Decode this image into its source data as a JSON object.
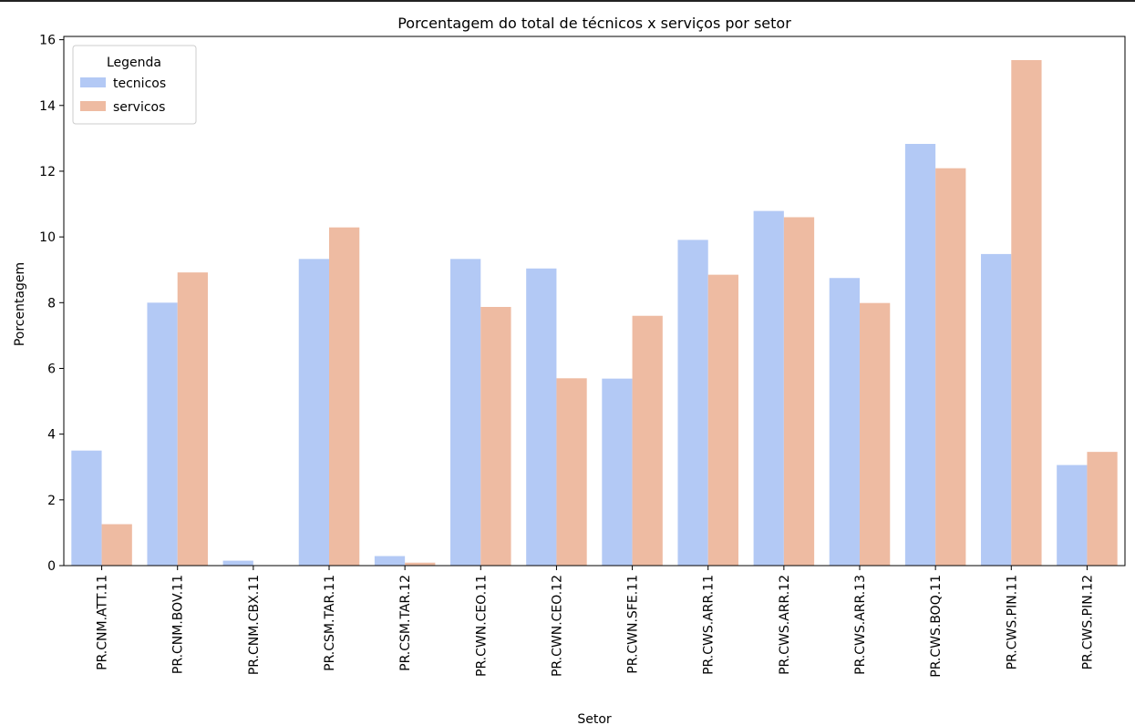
{
  "chart_data": {
    "type": "bar",
    "title": "Porcentagem do total de técnicos x serviços por setor",
    "xlabel": "Setor",
    "ylabel": "Porcentagem",
    "ylim": [
      0,
      16.1
    ],
    "yticks": [
      0,
      2,
      4,
      6,
      8,
      10,
      12,
      14,
      16
    ],
    "grid": false,
    "legend": {
      "title": "Legenda",
      "placement": "top-left"
    },
    "categories": [
      "PR.CNM.ATT.11",
      "PR.CNM.BOV.11",
      "PR.CNM.CBX.11",
      "PR.CSM.TAR.11",
      "PR.CSM.TAR.12",
      "PR.CWN.CEO.11",
      "PR.CWN.CEO.12",
      "PR.CWN.SFE.11",
      "PR.CWS.ARR.11",
      "PR.CWS.ARR.12",
      "PR.CWS.ARR.13",
      "PR.CWS.BOQ.11",
      "PR.CWS.PIN.11",
      "PR.CWS.PIN.12"
    ],
    "series": [
      {
        "name": "tecnicos",
        "color": "#b3c9f5",
        "values": [
          3.5,
          8.0,
          0.15,
          9.33,
          0.29,
          9.33,
          9.04,
          5.69,
          9.91,
          10.79,
          8.75,
          12.83,
          9.48,
          3.06
        ]
      },
      {
        "name": "servicos",
        "color": "#eebba2",
        "values": [
          1.26,
          8.92,
          0.0,
          10.29,
          0.09,
          7.87,
          5.7,
          7.6,
          8.85,
          10.6,
          7.99,
          12.09,
          15.38,
          3.46
        ]
      }
    ]
  }
}
